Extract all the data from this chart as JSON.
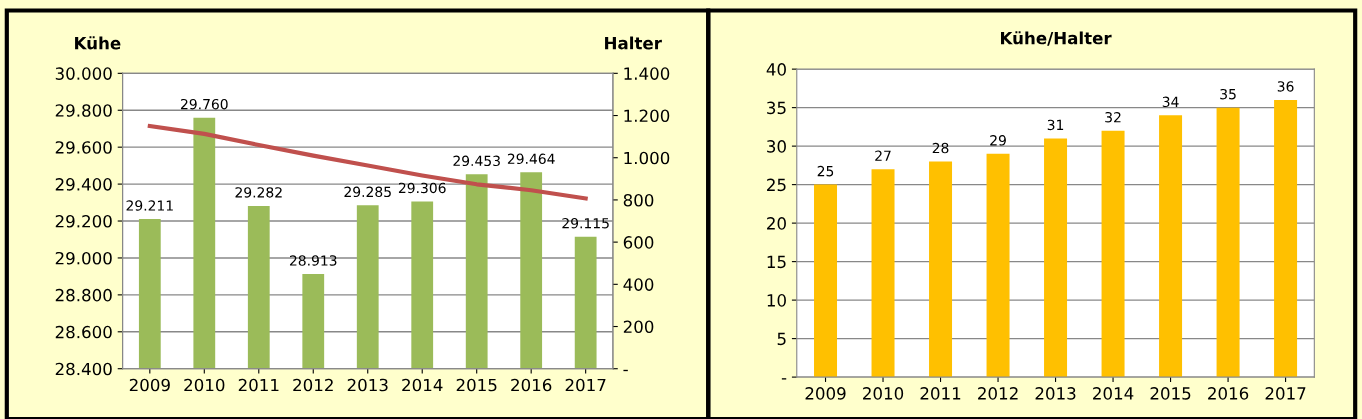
{
  "chart_data": [
    {
      "type": "bar",
      "ylabel": "Kühe",
      "y2label": "Halter",
      "categories": [
        "2009",
        "2010",
        "2011",
        "2012",
        "2013",
        "2014",
        "2015",
        "2016",
        "2017"
      ],
      "series": [
        {
          "type": "bar",
          "color": "#9bbb59",
          "values": [
            29211,
            29760,
            29282,
            28913,
            29285,
            29306,
            29453,
            29464,
            29115
          ],
          "value_labels": [
            "29.211",
            "29.760",
            "29.282",
            "28.913",
            "29.285",
            "29.306",
            "29.453",
            "29.464",
            "29.115"
          ]
        },
        {
          "type": "line",
          "axis": "y2",
          "color": "#c0504d",
          "values": [
            1150,
            1113,
            1060,
            1010,
            963,
            916,
            874,
            846,
            807
          ]
        }
      ],
      "ylim": [
        28400,
        30000
      ],
      "yticks": [
        {
          "value": 28400,
          "label": "28.400"
        },
        {
          "value": 28600,
          "label": "28.600"
        },
        {
          "value": 28800,
          "label": "28.800"
        },
        {
          "value": 29000,
          "label": "29.000"
        },
        {
          "value": 29200,
          "label": "29.200"
        },
        {
          "value": 29400,
          "label": "29.400"
        },
        {
          "value": 29600,
          "label": "29.600"
        },
        {
          "value": 29800,
          "label": "29.800"
        },
        {
          "value": 30000,
          "label": "30.000"
        }
      ],
      "y2lim": [
        0,
        1400
      ],
      "y2ticks": [
        {
          "value": 0,
          "label": "-"
        },
        200,
        400,
        600,
        800,
        {
          "value": 1000,
          "label": "1.000"
        },
        {
          "value": 1200,
          "label": "1.200"
        },
        {
          "value": 1400,
          "label": "1.400"
        }
      ],
      "grid": "y",
      "legend": false,
      "marker": "none",
      "line_style": "solid"
    },
    {
      "type": "bar",
      "title": "Kühe/Halter",
      "categories": [
        "2009",
        "2010",
        "2011",
        "2012",
        "2013",
        "2014",
        "2015",
        "2016",
        "2017"
      ],
      "series": [
        {
          "color": "#ffc000",
          "values": [
            25,
            27,
            28,
            29,
            31,
            32,
            34,
            35,
            36
          ]
        }
      ],
      "data_labels": true,
      "ylim": [
        0,
        40
      ],
      "yticks": [
        {
          "value": 0,
          "label": "-"
        },
        5,
        10,
        15,
        20,
        25,
        30,
        35,
        40
      ],
      "grid": "y",
      "legend": false
    }
  ]
}
